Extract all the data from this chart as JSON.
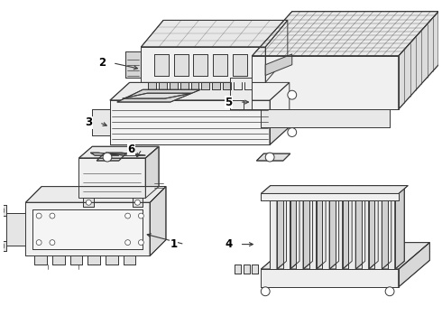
{
  "background_color": "#ffffff",
  "line_color": "#3a3a3a",
  "label_color": "#000000",
  "lw": 0.7,
  "fig_w": 4.9,
  "fig_h": 3.6,
  "dpi": 100
}
